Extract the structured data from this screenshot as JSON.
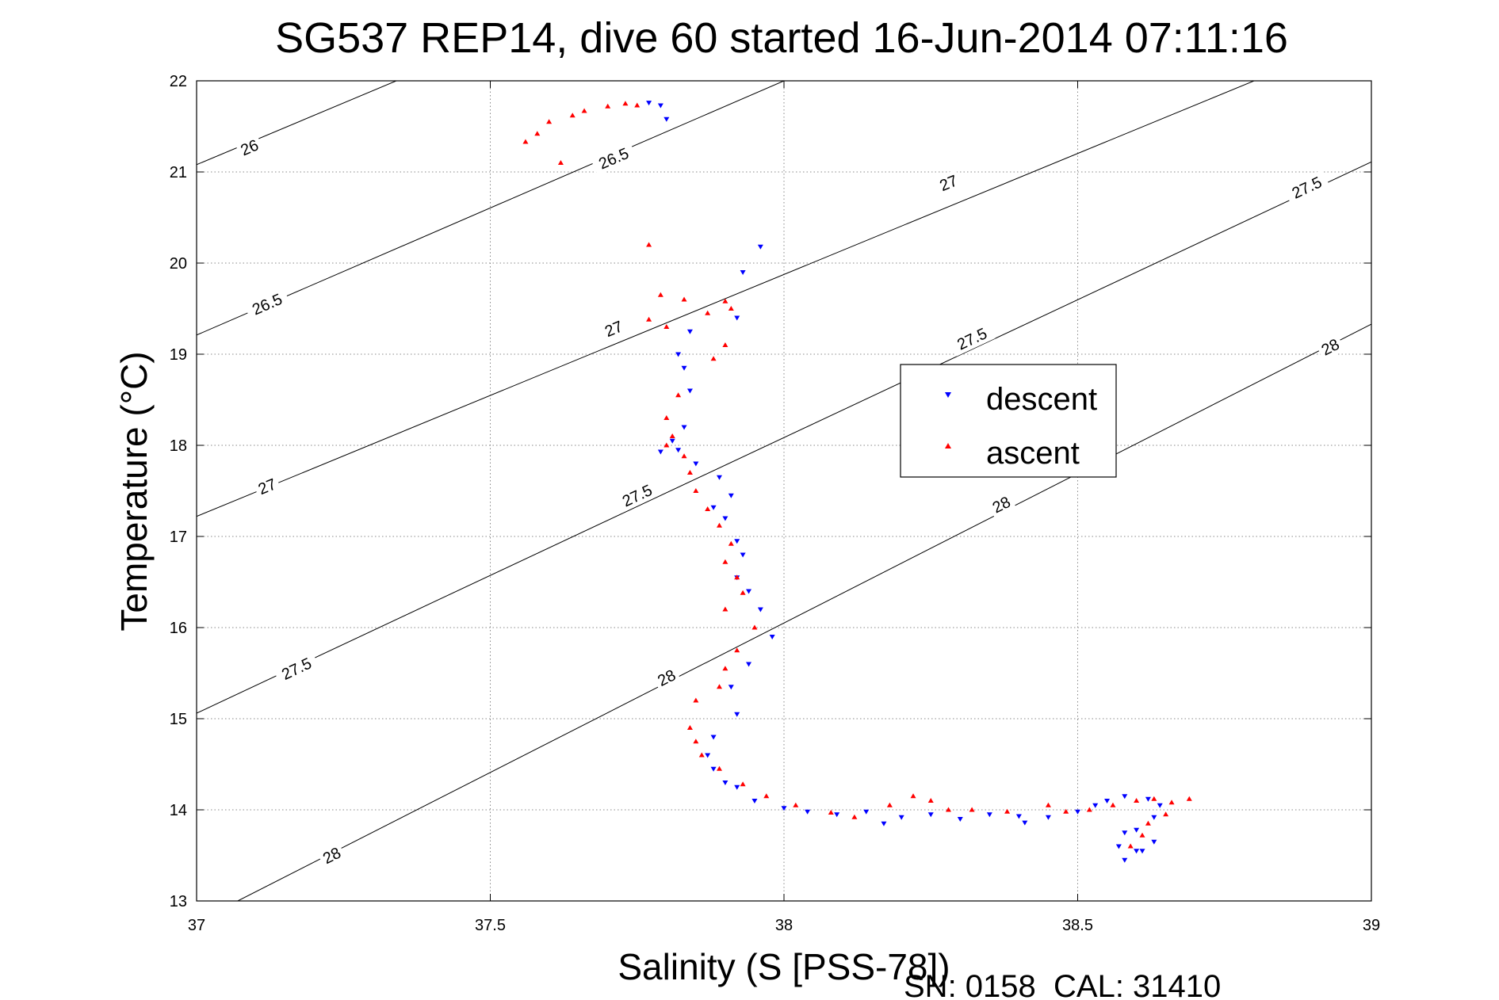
{
  "chart_data": {
    "type": "scatter",
    "title": "SG537 REP14, dive 60 started 16-Jun-2014 07:11:16",
    "xlabel": "Salinity (S [PSS-78])",
    "ylabel": "Temperature (°C)",
    "footnote": "SN: 0158  CAL: 31410",
    "xlim": [
      37,
      39
    ],
    "ylim": [
      13,
      22
    ],
    "xticks": [
      "37",
      "37.5",
      "38",
      "38.5",
      "39"
    ],
    "xtick_values": [
      37,
      37.5,
      38,
      38.5,
      39
    ],
    "yticks": [
      "13",
      "14",
      "15",
      "16",
      "17",
      "18",
      "19",
      "20",
      "21",
      "22"
    ],
    "ytick_values": [
      13,
      14,
      15,
      16,
      17,
      18,
      19,
      20,
      21,
      22
    ],
    "grid": true,
    "grid_style": "dotted",
    "legend_position": "center-right",
    "density_contours": [
      {
        "value": "26",
        "p0": [
          37,
          21.08
        ],
        "p1": [
          37.34,
          22
        ],
        "labels": [
          {
            "s": 37.09,
            "t": 21.27
          }
        ]
      },
      {
        "value": "26.5",
        "p0": [
          37,
          19.21
        ],
        "p1": [
          38,
          22
        ],
        "labels": [
          {
            "s": 37.12,
            "t": 19.55
          },
          {
            "s": 37.71,
            "t": 21.15
          }
        ]
      },
      {
        "value": "27",
        "p0": [
          37,
          17.22
        ],
        "p1": [
          39,
          22.53
        ],
        "labels": [
          {
            "s": 37.12,
            "t": 17.55
          },
          {
            "s": 37.71,
            "t": 19.28
          },
          {
            "s": 38.28,
            "t": 20.88
          }
        ]
      },
      {
        "value": "27.5",
        "p0": [
          37,
          15.06
        ],
        "p1": [
          39,
          21.11
        ],
        "labels": [
          {
            "s": 37.17,
            "t": 15.55
          },
          {
            "s": 37.75,
            "t": 17.45
          },
          {
            "s": 38.32,
            "t": 19.17
          },
          {
            "s": 38.89,
            "t": 20.83
          }
        ]
      },
      {
        "value": "28",
        "p0": [
          37.07,
          13
        ],
        "p1": [
          39,
          19.33
        ],
        "labels": [
          {
            "s": 37.23,
            "t": 13.5
          },
          {
            "s": 37.8,
            "t": 15.45
          },
          {
            "s": 38.37,
            "t": 17.35
          },
          {
            "s": 38.93,
            "t": 19.08
          }
        ]
      }
    ],
    "series": [
      {
        "name": "descent",
        "color": "#0000ff",
        "marker": "triangle-down",
        "points": [
          [
            37.77,
            21.76
          ],
          [
            37.79,
            21.73
          ],
          [
            37.8,
            21.58
          ],
          [
            37.96,
            20.18
          ],
          [
            37.93,
            19.9
          ],
          [
            37.92,
            19.4
          ],
          [
            37.84,
            19.25
          ],
          [
            37.82,
            19.0
          ],
          [
            37.83,
            18.85
          ],
          [
            37.84,
            18.6
          ],
          [
            37.83,
            18.2
          ],
          [
            37.81,
            18.05
          ],
          [
            37.82,
            17.95
          ],
          [
            37.79,
            17.93
          ],
          [
            37.85,
            17.8
          ],
          [
            37.89,
            17.65
          ],
          [
            37.91,
            17.45
          ],
          [
            37.88,
            17.32
          ],
          [
            37.9,
            17.2
          ],
          [
            37.92,
            16.95
          ],
          [
            37.93,
            16.8
          ],
          [
            37.92,
            16.55
          ],
          [
            37.94,
            16.4
          ],
          [
            37.96,
            16.2
          ],
          [
            37.98,
            15.9
          ],
          [
            37.94,
            15.6
          ],
          [
            37.91,
            15.35
          ],
          [
            37.92,
            15.05
          ],
          [
            37.88,
            14.8
          ],
          [
            37.87,
            14.6
          ],
          [
            37.88,
            14.45
          ],
          [
            37.9,
            14.3
          ],
          [
            37.92,
            14.25
          ],
          [
            37.95,
            14.1
          ],
          [
            38.0,
            14.02
          ],
          [
            38.04,
            13.98
          ],
          [
            38.09,
            13.95
          ],
          [
            38.14,
            13.98
          ],
          [
            38.17,
            13.85
          ],
          [
            38.2,
            13.92
          ],
          [
            38.25,
            13.95
          ],
          [
            38.3,
            13.9
          ],
          [
            38.35,
            13.95
          ],
          [
            38.4,
            13.93
          ],
          [
            38.41,
            13.86
          ],
          [
            38.45,
            13.92
          ],
          [
            38.5,
            13.98
          ],
          [
            38.53,
            14.05
          ],
          [
            38.55,
            14.1
          ],
          [
            38.58,
            14.15
          ],
          [
            38.62,
            14.12
          ],
          [
            38.64,
            14.05
          ],
          [
            38.63,
            13.92
          ],
          [
            38.6,
            13.78
          ],
          [
            38.58,
            13.75
          ],
          [
            38.57,
            13.6
          ],
          [
            38.6,
            13.55
          ],
          [
            38.58,
            13.45
          ],
          [
            38.61,
            13.55
          ],
          [
            38.63,
            13.65
          ]
        ]
      },
      {
        "name": "ascent",
        "color": "#ff0000",
        "marker": "triangle-up",
        "points": [
          [
            37.56,
            21.33
          ],
          [
            37.58,
            21.42
          ],
          [
            37.6,
            21.55
          ],
          [
            37.62,
            21.1
          ],
          [
            37.64,
            21.62
          ],
          [
            37.66,
            21.67
          ],
          [
            37.7,
            21.72
          ],
          [
            37.73,
            21.75
          ],
          [
            37.75,
            21.73
          ],
          [
            37.77,
            20.2
          ],
          [
            37.79,
            19.65
          ],
          [
            37.77,
            19.38
          ],
          [
            37.8,
            19.3
          ],
          [
            37.83,
            19.6
          ],
          [
            37.87,
            19.45
          ],
          [
            37.9,
            19.58
          ],
          [
            37.91,
            19.5
          ],
          [
            37.9,
            19.1
          ],
          [
            37.88,
            18.95
          ],
          [
            37.82,
            18.55
          ],
          [
            37.8,
            18.3
          ],
          [
            37.81,
            18.1
          ],
          [
            37.8,
            18.0
          ],
          [
            37.83,
            17.88
          ],
          [
            37.84,
            17.7
          ],
          [
            37.85,
            17.5
          ],
          [
            37.87,
            17.3
          ],
          [
            37.89,
            17.12
          ],
          [
            37.91,
            16.92
          ],
          [
            37.9,
            16.72
          ],
          [
            37.92,
            16.55
          ],
          [
            37.93,
            16.38
          ],
          [
            37.9,
            16.2
          ],
          [
            37.95,
            16.0
          ],
          [
            37.92,
            15.75
          ],
          [
            37.9,
            15.55
          ],
          [
            37.89,
            15.35
          ],
          [
            37.85,
            15.2
          ],
          [
            37.84,
            14.9
          ],
          [
            37.85,
            14.75
          ],
          [
            37.86,
            14.6
          ],
          [
            37.89,
            14.45
          ],
          [
            37.93,
            14.28
          ],
          [
            37.97,
            14.15
          ],
          [
            38.02,
            14.05
          ],
          [
            38.08,
            13.97
          ],
          [
            38.12,
            13.92
          ],
          [
            38.18,
            14.05
          ],
          [
            38.22,
            14.15
          ],
          [
            38.25,
            14.1
          ],
          [
            38.28,
            14.0
          ],
          [
            38.32,
            14.0
          ],
          [
            38.38,
            13.98
          ],
          [
            38.45,
            14.05
          ],
          [
            38.48,
            13.98
          ],
          [
            38.52,
            14.0
          ],
          [
            38.56,
            14.05
          ],
          [
            38.6,
            14.1
          ],
          [
            38.63,
            14.12
          ],
          [
            38.66,
            14.08
          ],
          [
            38.69,
            14.12
          ],
          [
            38.65,
            13.95
          ],
          [
            38.62,
            13.85
          ],
          [
            38.61,
            13.72
          ],
          [
            38.59,
            13.6
          ]
        ]
      }
    ]
  }
}
